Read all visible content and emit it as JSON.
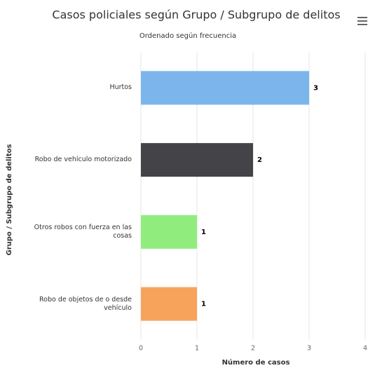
{
  "chart_data": {
    "type": "bar",
    "orientation": "horizontal",
    "title": "Casos policiales según Grupo / Subgrupo de delitos",
    "subtitle": "Ordenado según frecuencia",
    "x_label": "Número de casos",
    "y_label": "Grupo / Subgrupo de delitos",
    "categories": [
      "Hurtos",
      "Robo de vehículo motorizado",
      "Otros robos con fuerza en las cosas",
      "Robo de objetos de o desde vehículo"
    ],
    "values": [
      3,
      2,
      1,
      1
    ],
    "colors": [
      "#7cb5ec",
      "#434348",
      "#90ed7d",
      "#f7a35c"
    ],
    "xlim": [
      0,
      4
    ],
    "xticks": [
      0,
      1,
      2,
      3,
      4
    ],
    "grid": true
  }
}
